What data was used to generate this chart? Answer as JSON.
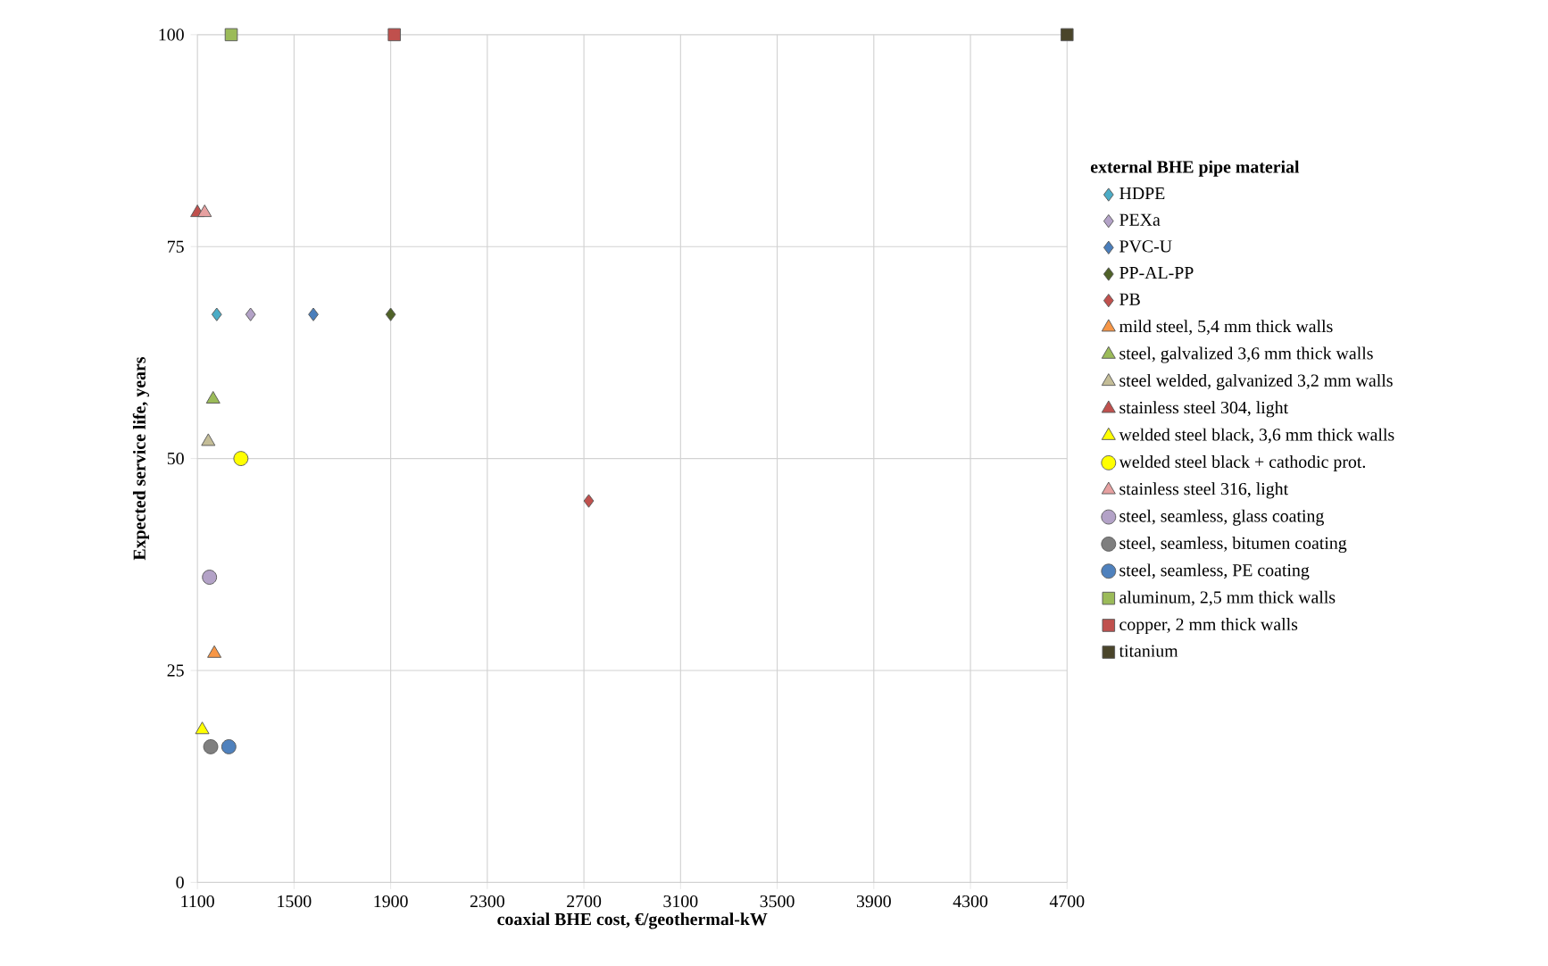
{
  "chart_data": {
    "type": "scatter",
    "xlabel": "coaxial BHE cost, €/geothermal-kW",
    "ylabel": "Expected service life, years",
    "legend_title": "external BHE pipe material",
    "xlim": [
      1100,
      4700
    ],
    "xticks": [
      1100,
      1500,
      1900,
      2300,
      2700,
      3100,
      3500,
      3900,
      4300,
      4700
    ],
    "ylim": [
      0,
      100
    ],
    "yticks": [
      0,
      25,
      50,
      75,
      100
    ],
    "grid": true,
    "legend": "right",
    "series": [
      {
        "name": "HDPE",
        "color": "#4bacc6",
        "marker": "diamond",
        "x": [
          1180
        ],
        "values": [
          67
        ]
      },
      {
        "name": "PEXa",
        "color": "#b3a2c7",
        "marker": "diamond",
        "x": [
          1320
        ],
        "values": [
          67
        ]
      },
      {
        "name": "PVC-U",
        "color": "#4a7ebb",
        "marker": "diamond",
        "x": [
          1580
        ],
        "values": [
          67
        ]
      },
      {
        "name": "PP-AL-PP",
        "color": "#4f6228",
        "marker": "diamond",
        "x": [
          1900
        ],
        "values": [
          67
        ]
      },
      {
        "name": "PB",
        "color": "#c0504d",
        "marker": "diamond",
        "x": [
          2720
        ],
        "values": [
          45
        ]
      },
      {
        "name": "mild steel, 5,4 mm thick walls",
        "color": "#f79646",
        "marker": "triangle",
        "x": [
          1170
        ],
        "values": [
          27
        ]
      },
      {
        "name": "steel, galvalized 3,6 mm thick walls",
        "color": "#9bbb59",
        "marker": "triangle",
        "x": [
          1165
        ],
        "values": [
          57
        ]
      },
      {
        "name": "steel welded, galvanized 3,2 mm walls",
        "color": "#c4bd97",
        "marker": "triangle",
        "x": [
          1145
        ],
        "values": [
          52
        ]
      },
      {
        "name": "stainless steel 304, light",
        "color": "#c0504d",
        "marker": "triangle",
        "x": [
          1100
        ],
        "values": [
          79
        ]
      },
      {
        "name": "welded steel black, 3,6 mm thick walls",
        "color": "#ffff00",
        "marker": "triangle",
        "x": [
          1120
        ],
        "values": [
          18
        ]
      },
      {
        "name": "welded steel black + cathodic prot.",
        "color": "#ffff00",
        "marker": "circle",
        "x": [
          1280
        ],
        "values": [
          50
        ]
      },
      {
        "name": "stainless steel 316, light",
        "color": "#e6a0a0",
        "marker": "triangle",
        "x": [
          1130
        ],
        "values": [
          79
        ]
      },
      {
        "name": "steel, seamless, glass coating",
        "color": "#b3a2c7",
        "marker": "circle",
        "x": [
          1150
        ],
        "values": [
          36
        ]
      },
      {
        "name": "steel, seamless, bitumen coating",
        "color": "#7f7f7f",
        "marker": "circle",
        "x": [
          1155
        ],
        "values": [
          16
        ]
      },
      {
        "name": "steel, seamless, PE coating",
        "color": "#4f81bd",
        "marker": "circle",
        "x": [
          1230
        ],
        "values": [
          16
        ]
      },
      {
        "name": "aluminum, 2,5 mm thick walls",
        "color": "#9bbb59",
        "marker": "square",
        "x": [
          1240
        ],
        "values": [
          100
        ]
      },
      {
        "name": "copper, 2 mm thick walls",
        "color": "#c0504d",
        "marker": "square",
        "x": [
          1915
        ],
        "values": [
          100
        ]
      },
      {
        "name": "titanium",
        "color": "#4a452a",
        "marker": "square",
        "x": [
          4700
        ],
        "values": [
          100
        ]
      }
    ]
  }
}
